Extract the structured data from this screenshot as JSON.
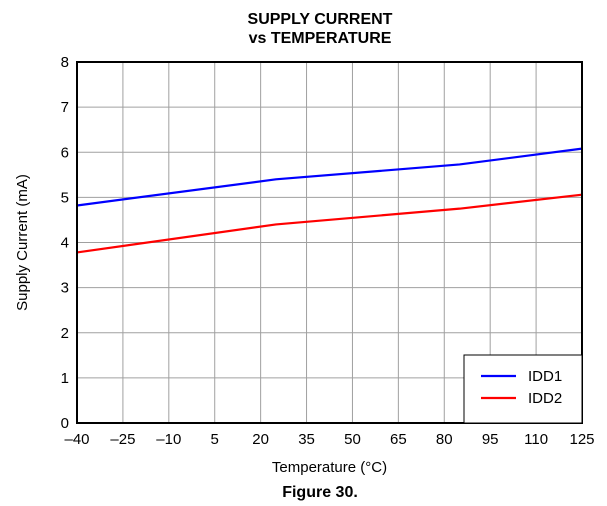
{
  "chart_data": {
    "type": "line",
    "title": "SUPPLY CURRENT",
    "subtitle": "vs TEMPERATURE",
    "xlabel": "Temperature (°C)",
    "ylabel": "Supply Current (mA)",
    "xlim": [
      -40,
      125
    ],
    "ylim": [
      0,
      8
    ],
    "x_ticks": [
      -40,
      -25,
      -10,
      5,
      20,
      35,
      50,
      65,
      80,
      95,
      110,
      125
    ],
    "x_tick_labels": [
      "–40",
      "–25",
      "–10",
      "5",
      "20",
      "35",
      "50",
      "65",
      "80",
      "95",
      "110",
      "125"
    ],
    "y_ticks": [
      0,
      1,
      2,
      3,
      4,
      5,
      6,
      7,
      8
    ],
    "y_tick_labels": [
      "0",
      "1",
      "2",
      "3",
      "4",
      "5",
      "6",
      "7",
      "8"
    ],
    "grid": true,
    "legend_position": "bottom-right",
    "series": [
      {
        "name": "IDD1",
        "color": "#0000ff",
        "x": [
          -40,
          25,
          85,
          125
        ],
        "y": [
          4.82,
          5.4,
          5.73,
          6.08
        ]
      },
      {
        "name": "IDD2",
        "color": "#ff0000",
        "x": [
          -40,
          25,
          85,
          125
        ],
        "y": [
          3.78,
          4.4,
          4.75,
          5.06
        ]
      }
    ]
  },
  "caption": "Figure 30."
}
